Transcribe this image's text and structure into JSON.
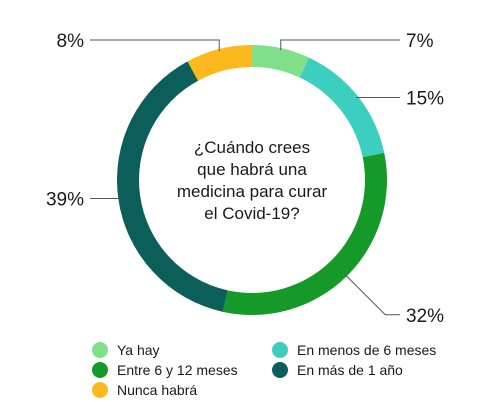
{
  "chart_data": {
    "type": "donut",
    "center_text": [
      "¿Cuándo crees",
      "que habrá una",
      "medicina para curar",
      "el Covid-19?"
    ],
    "series": [
      {
        "name": "Ya hay",
        "value": 7,
        "label": "7%",
        "color": "#7fe08a"
      },
      {
        "name": "En menos de 6 meses",
        "value": 15,
        "label": "15%",
        "color": "#3ccfbf"
      },
      {
        "name": "Entre 6 y 12 meses",
        "value": 32,
        "label": "32%",
        "color": "#159a2a"
      },
      {
        "name": "En más de 1 año",
        "value": 39,
        "label": "39%",
        "color": "#0b5e5a"
      },
      {
        "name": "Nunca habrá",
        "value": 8,
        "label": "8%",
        "color": "#fbb91d"
      }
    ],
    "legend_order": [
      "Ya hay",
      "En menos de 6 meses",
      "Entre 6 y 12 meses",
      "En más de 1 año",
      "Nunca habrá"
    ],
    "legend_position": "bottom"
  }
}
